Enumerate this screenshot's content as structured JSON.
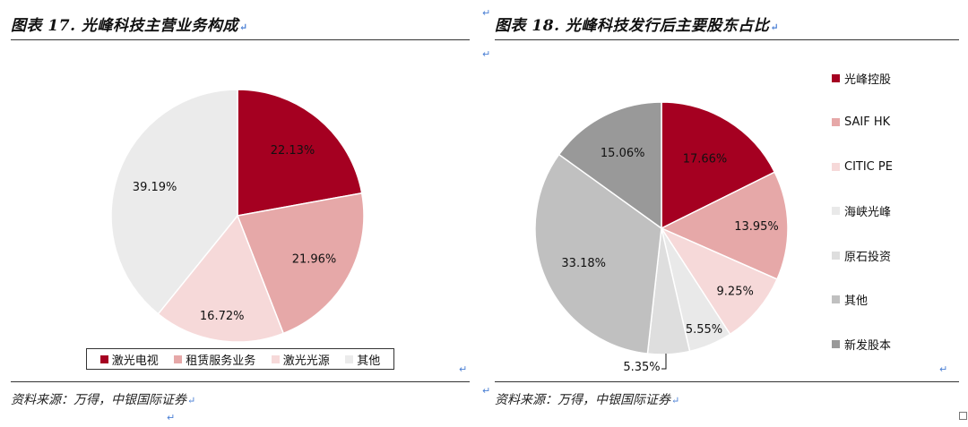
{
  "chart_data": [
    {
      "type": "pie",
      "title": "图表 17. 光峰科技主营业务构成",
      "categories": [
        "激光电视",
        "租赁服务业务",
        "激光光源",
        "其他"
      ],
      "values": [
        22.13,
        21.96,
        16.72,
        39.19
      ],
      "data_labels": [
        "22.13%",
        "21.96%",
        "16.72%",
        "39.19%"
      ],
      "colors": [
        "#A50021",
        "#E6A8A8",
        "#F6D9D9",
        "#EBEBEB"
      ],
      "start_angle_deg": 0,
      "direction": "clockwise",
      "legend_position": "bottom",
      "source": "资料来源：万得，中银国际证券"
    },
    {
      "type": "pie",
      "title": "图表 18. 光峰科技发行后主要股东占比",
      "categories": [
        "光峰控股",
        "SAIF HK",
        "CITIC PE",
        "海峡光峰",
        "原石投资",
        "其他",
        "新发股本"
      ],
      "values": [
        17.66,
        13.95,
        9.25,
        5.55,
        5.35,
        33.18,
        15.06
      ],
      "data_labels": [
        "17.66%",
        "13.95%",
        "9.25%",
        "5.55%",
        "5.35%",
        "33.18%",
        "15.06%"
      ],
      "colors": [
        "#A50021",
        "#E6A8A8",
        "#F6D9D9",
        "#E9E9E9",
        "#DEDEDE",
        "#C0C0C0",
        "#999999"
      ],
      "start_angle_deg": 0,
      "direction": "clockwise",
      "legend_position": "right",
      "source": "资料来源：万得，中银国际证券"
    }
  ],
  "marks": {
    "return_glyph": "↵"
  }
}
